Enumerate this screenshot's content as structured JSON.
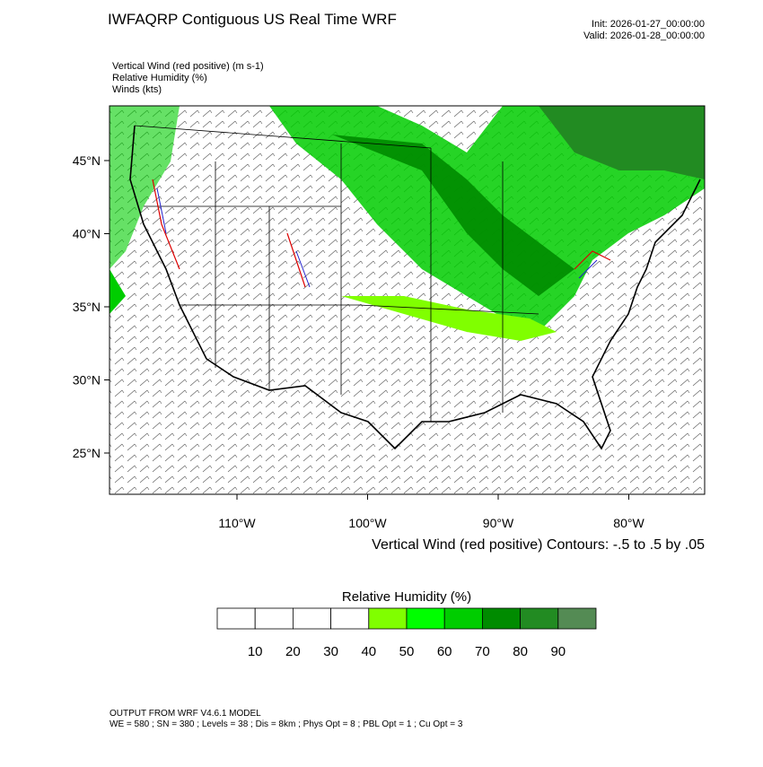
{
  "header": {
    "title": "IWFAQRP Contiguous US Real Time WRF",
    "init": "Init: 2026-01-27_00:00:00",
    "valid": "Valid: 2026-01-28_00:00:00"
  },
  "fields": [
    "Vertical Wind (red positive)   (m s-1)",
    "Relative Humidity   (%)",
    "Winds   (kts)"
  ],
  "map": {
    "lat_labels": [
      "45°N",
      "40°N",
      "35°N",
      "30°N",
      "25°N"
    ],
    "lon_labels": [
      "110°W",
      "100°W",
      "90°W",
      "80°W"
    ],
    "contour_note": "Vertical Wind (red positive) Contours: -.5 to .5 by .05"
  },
  "colorbar": {
    "title": "Relative Humidity  (%)",
    "colors": [
      "#ffffff",
      "#ffffff",
      "#ffffff",
      "#ffffff",
      "#80ff00",
      "#00ff00",
      "#00cd00",
      "#008b00",
      "#228b22",
      "#548b54"
    ],
    "labels": [
      10,
      20,
      30,
      40,
      50,
      60,
      70,
      80,
      90
    ]
  },
  "footer": {
    "line1": "OUTPUT FROM WRF V4.6.1 MODEL",
    "line2": "WE = 580 ; SN = 380 ; Levels = 38 ; Dis = 8km ; Phys Opt = 8 ; PBL Opt = 1 ; Cu Opt = 3"
  }
}
